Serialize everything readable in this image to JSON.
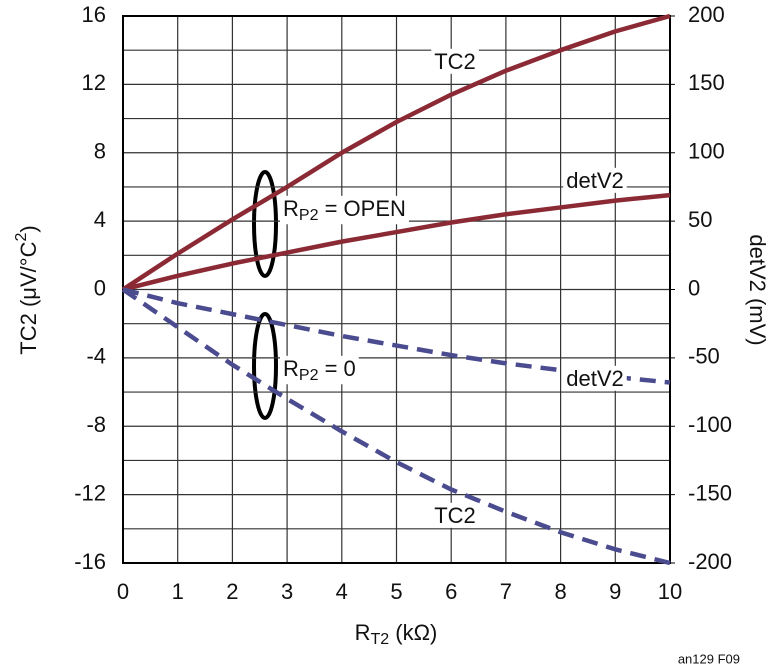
{
  "chart_data": {
    "type": "line",
    "xlabel": {
      "text": "R",
      "sub": "T2",
      "rest": " (kΩ)"
    },
    "ylabel": {
      "text": "TC2 (μV/°C",
      "sup": "2",
      "rest": ")"
    },
    "y2label": "detV2 (mV)",
    "footnote": "an129 F09",
    "x": [
      0,
      1,
      2,
      3,
      4,
      5,
      6,
      7,
      8,
      9,
      10
    ],
    "xlim": [
      0,
      10
    ],
    "xticks": [
      0,
      1,
      2,
      3,
      4,
      5,
      6,
      7,
      8,
      9,
      10
    ],
    "ylim": [
      -16,
      16
    ],
    "yticks": [
      -16,
      -12,
      -8,
      -4,
      0,
      4,
      8,
      12,
      16
    ],
    "yminorticks": [
      -14,
      -10,
      -6,
      -2,
      2,
      6,
      10,
      14
    ],
    "y2lim": [
      -200,
      200
    ],
    "y2ticks": [
      -200,
      -150,
      -100,
      -50,
      0,
      50,
      100,
      150,
      200
    ],
    "grid": true,
    "series": [
      {
        "name": "TC2",
        "color": "#8b2a35",
        "dashed": false,
        "values": [
          0,
          2.1,
          4.1,
          6.0,
          8.0,
          9.8,
          11.4,
          12.8,
          14,
          15.1,
          16
        ]
      },
      {
        "name": "detV2",
        "color": "#8b2a35",
        "dashed": false,
        "axis": "y2",
        "values": [
          0,
          10,
          19,
          27,
          35,
          42,
          49,
          55,
          60,
          65,
          69
        ]
      },
      {
        "name": "detV2",
        "color": "#4b4b8f",
        "dashed": true,
        "axis": "y2",
        "values": [
          0,
          -10,
          -18,
          -26,
          -34,
          -41,
          -48,
          -54,
          -59,
          -64,
          -68
        ]
      },
      {
        "name": "TC2",
        "color": "#4b4b8f",
        "dashed": true,
        "values": [
          0,
          -2.2,
          -4.4,
          -6.4,
          -8.3,
          -10.1,
          -11.7,
          -13,
          -14.2,
          -15.2,
          -16
        ]
      }
    ],
    "annotations": [
      {
        "text": "R",
        "sub": "P2",
        "rest": " = OPEN"
      },
      {
        "text": "R",
        "sub": "P2",
        "rest": " = 0"
      }
    ]
  }
}
